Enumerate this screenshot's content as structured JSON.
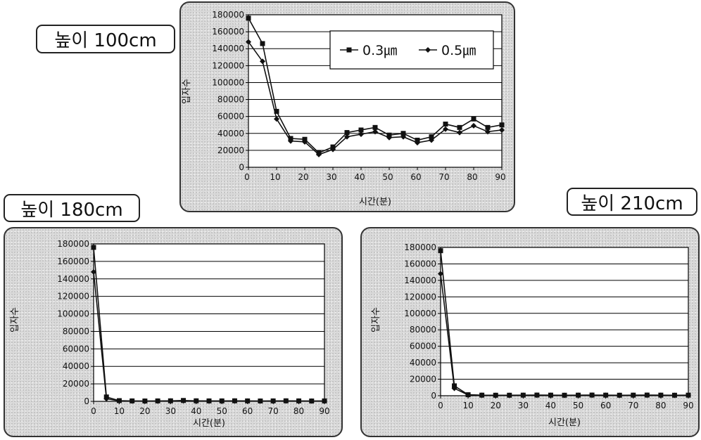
{
  "labels": {
    "top": "높이 100cm",
    "left": "높이 180cm",
    "right": "높이 210cm"
  },
  "colors": {
    "line": "#111111",
    "grid": "#000000",
    "plot_bg": "#ffffff"
  },
  "chart_data": [
    {
      "type": "line",
      "ylabel": "입자수",
      "xlabel": "시간(분)",
      "x": [
        0,
        5,
        10,
        15,
        20,
        25,
        30,
        35,
        40,
        45,
        50,
        55,
        60,
        65,
        70,
        75,
        80,
        85,
        90
      ],
      "xticks": [
        0,
        10,
        20,
        30,
        40,
        50,
        60,
        70,
        80,
        90
      ],
      "yticks": [
        0,
        20000,
        40000,
        60000,
        80000,
        100000,
        120000,
        140000,
        160000,
        180000
      ],
      "xlim": [
        0,
        90
      ],
      "ylim": [
        0,
        180000
      ],
      "grid": true,
      "legend": "top-right",
      "series": [
        {
          "name": "0.3㎛",
          "marker": "square",
          "values": [
            176000,
            146000,
            66000,
            34000,
            33000,
            17000,
            24000,
            41000,
            44000,
            47000,
            38000,
            40000,
            32000,
            36000,
            51000,
            47000,
            57000,
            47000,
            50000
          ]
        },
        {
          "name": "0.5㎛",
          "marker": "diamond",
          "values": [
            148000,
            125000,
            57000,
            31000,
            30000,
            15000,
            21000,
            36000,
            39000,
            42000,
            35000,
            36000,
            29000,
            32000,
            45000,
            41000,
            49000,
            42000,
            44000
          ]
        }
      ]
    },
    {
      "type": "line",
      "ylabel": "입자수",
      "xlabel": "시간(분)",
      "x": [
        0,
        5,
        10,
        15,
        20,
        25,
        30,
        35,
        40,
        45,
        50,
        55,
        60,
        65,
        70,
        75,
        80,
        85,
        90
      ],
      "xticks": [
        0,
        10,
        20,
        30,
        40,
        50,
        60,
        70,
        80,
        90
      ],
      "yticks": [
        0,
        20000,
        40000,
        60000,
        80000,
        100000,
        120000,
        140000,
        160000,
        180000
      ],
      "xlim": [
        0,
        90
      ],
      "ylim": [
        0,
        180000
      ],
      "grid": true,
      "series": [
        {
          "marker": "square",
          "values": [
            176000,
            5000,
            800,
            500,
            400,
            500,
            600,
            1000,
            600,
            500,
            500,
            600,
            500,
            400,
            500,
            600,
            500,
            400,
            500
          ]
        },
        {
          "marker": "diamond",
          "values": [
            148000,
            3000,
            500,
            300,
            300,
            300,
            400,
            600,
            400,
            300,
            300,
            400,
            300,
            300,
            300,
            400,
            300,
            300,
            300
          ]
        }
      ]
    },
    {
      "type": "line",
      "ylabel": "입자수",
      "xlabel": "시간(분)",
      "x": [
        0,
        5,
        10,
        15,
        20,
        25,
        30,
        35,
        40,
        45,
        50,
        55,
        60,
        65,
        70,
        75,
        80,
        85,
        90
      ],
      "xticks": [
        0,
        10,
        20,
        30,
        40,
        50,
        60,
        70,
        80,
        90
      ],
      "yticks": [
        0,
        20000,
        40000,
        60000,
        80000,
        100000,
        120000,
        140000,
        160000,
        180000
      ],
      "xlim": [
        0,
        90
      ],
      "ylim": [
        0,
        180000
      ],
      "grid": true,
      "series": [
        {
          "marker": "square",
          "values": [
            176000,
            12000,
            1200,
            700,
            600,
            600,
            700,
            800,
            700,
            600,
            700,
            800,
            700,
            600,
            700,
            800,
            700,
            600,
            700
          ]
        },
        {
          "marker": "diamond",
          "values": [
            148000,
            9000,
            900,
            500,
            400,
            400,
            500,
            600,
            500,
            400,
            500,
            600,
            500,
            400,
            500,
            600,
            500,
            400,
            500
          ]
        }
      ]
    }
  ]
}
